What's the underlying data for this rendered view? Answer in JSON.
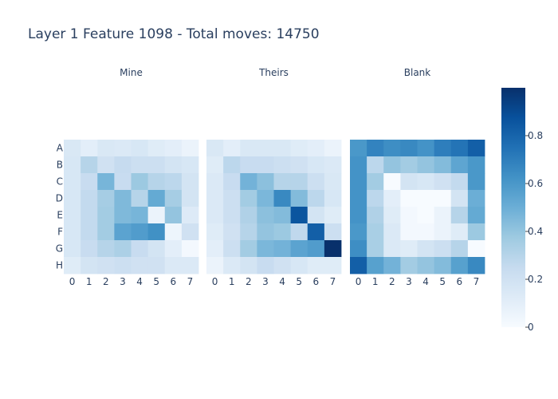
{
  "title": "Layer 1 Feature 1098 - Total moves: 14750",
  "chart_data": {
    "type": "heatmap",
    "title": "Layer 1 Feature 1098 - Total moves: 14750",
    "colorscale": [
      "#f7fbff",
      "#deebf7",
      "#c6dbef",
      "#9ecae1",
      "#6baed6",
      "#4292c6",
      "#2171b5",
      "#08519c",
      "#08306b"
    ],
    "zlim": [
      0,
      1.0
    ],
    "colorbar_ticks": [
      0,
      0.2,
      0.4,
      0.6,
      0.8
    ],
    "colorbar_tick_labels": [
      "0",
      "0.2",
      "0.4",
      "0.6",
      "0.8"
    ],
    "x_tick_labels": [
      "0",
      "1",
      "2",
      "3",
      "4",
      "5",
      "6",
      "7"
    ],
    "y_tick_labels": [
      "A",
      "B",
      "C",
      "D",
      "E",
      "F",
      "G",
      "H"
    ],
    "panels": [
      {
        "name": "Mine",
        "z": [
          [
            0.15,
            0.1,
            0.15,
            0.14,
            0.16,
            0.12,
            0.1,
            0.06
          ],
          [
            0.16,
            0.3,
            0.2,
            0.25,
            0.22,
            0.22,
            0.18,
            0.16
          ],
          [
            0.16,
            0.24,
            0.47,
            0.24,
            0.38,
            0.3,
            0.28,
            0.18
          ],
          [
            0.16,
            0.26,
            0.35,
            0.45,
            0.3,
            0.52,
            0.35,
            0.18
          ],
          [
            0.16,
            0.26,
            0.36,
            0.45,
            0.47,
            0.06,
            0.4,
            0.13
          ],
          [
            0.16,
            0.26,
            0.36,
            0.55,
            0.58,
            0.63,
            0.05,
            0.2
          ],
          [
            0.16,
            0.24,
            0.3,
            0.33,
            0.24,
            0.18,
            0.1,
            0.02
          ],
          [
            0.12,
            0.18,
            0.2,
            0.22,
            0.2,
            0.2,
            0.14,
            0.14
          ]
        ]
      },
      {
        "name": "Theirs",
        "z": [
          [
            0.15,
            0.1,
            0.15,
            0.15,
            0.15,
            0.12,
            0.1,
            0.06
          ],
          [
            0.12,
            0.28,
            0.24,
            0.24,
            0.22,
            0.2,
            0.16,
            0.14
          ],
          [
            0.14,
            0.24,
            0.48,
            0.42,
            0.3,
            0.3,
            0.22,
            0.15
          ],
          [
            0.14,
            0.22,
            0.36,
            0.46,
            0.66,
            0.44,
            0.28,
            0.16
          ],
          [
            0.14,
            0.22,
            0.32,
            0.42,
            0.44,
            0.86,
            0.18,
            0.12
          ],
          [
            0.12,
            0.2,
            0.3,
            0.4,
            0.38,
            0.27,
            0.82,
            0.22
          ],
          [
            0.1,
            0.22,
            0.36,
            0.46,
            0.48,
            0.55,
            0.58,
            1.0
          ],
          [
            0.06,
            0.14,
            0.18,
            0.24,
            0.2,
            0.16,
            0.12,
            0.12
          ]
        ]
      },
      {
        "name": "Blank",
        "z": [
          [
            0.6,
            0.68,
            0.64,
            0.66,
            0.62,
            0.7,
            0.74,
            0.82
          ],
          [
            0.62,
            0.28,
            0.4,
            0.36,
            0.4,
            0.44,
            0.54,
            0.6
          ],
          [
            0.62,
            0.36,
            0.0,
            0.18,
            0.16,
            0.2,
            0.26,
            0.6
          ],
          [
            0.62,
            0.28,
            0.1,
            0.0,
            0.0,
            0.0,
            0.18,
            0.5
          ],
          [
            0.62,
            0.32,
            0.12,
            0.02,
            0.0,
            0.06,
            0.3,
            0.52
          ],
          [
            0.6,
            0.34,
            0.14,
            0.02,
            0.02,
            0.06,
            0.12,
            0.38
          ],
          [
            0.64,
            0.34,
            0.14,
            0.12,
            0.18,
            0.22,
            0.3,
            0.0
          ],
          [
            0.82,
            0.56,
            0.48,
            0.36,
            0.4,
            0.44,
            0.56,
            0.66
          ]
        ]
      }
    ]
  }
}
